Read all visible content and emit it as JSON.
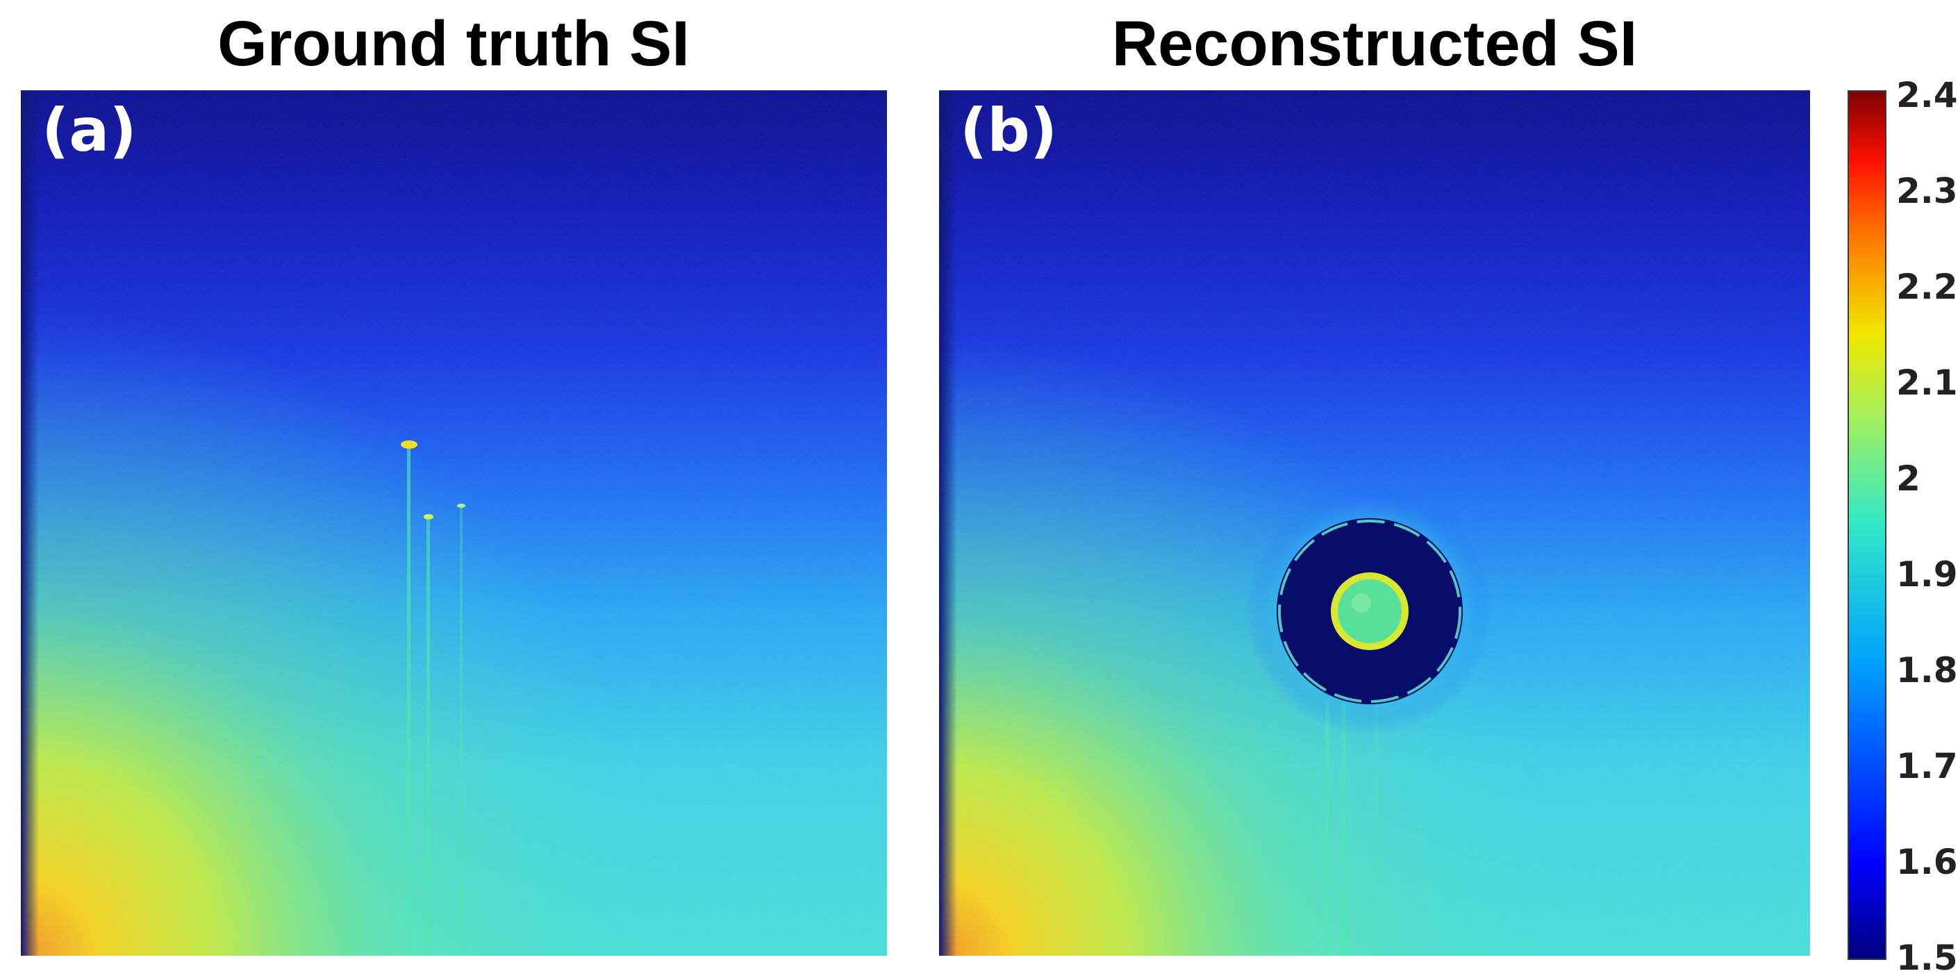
{
  "panels": [
    {
      "title": "Ground truth SI",
      "label": "(a)"
    },
    {
      "title": "Reconstructed SI",
      "label": "(b)"
    }
  ],
  "colorbar": {
    "min": 1.5,
    "max": 2.4,
    "colormap": "jet",
    "ticks": [
      "2.4",
      "2.3",
      "2.2",
      "2.1",
      "2",
      "1.9",
      "1.8",
      "1.7",
      "1.6",
      "1.5"
    ]
  }
}
